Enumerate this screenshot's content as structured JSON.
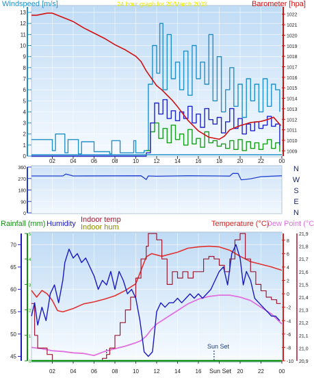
{
  "header": {
    "windspeed_label": "Windspeed [m/s]",
    "title": "24 hour graph for 20/March 2003",
    "barometer_label": "Barometer [hpa]"
  },
  "middle": {
    "compass_letters": [
      "N",
      "W",
      "S",
      "E",
      "N"
    ]
  },
  "bottom": {
    "rainfall_label": "Rainfall (mm)",
    "humidity_label": "Humidity",
    "indoor_temp_label": "Indoor temp",
    "indoor_hum_label": "Indoor hum",
    "temperature_label": "Temperature (°C)",
    "dewpoint_label": "Dew Point (°C)",
    "sunset_label": "Sun Set",
    "sunset_bottom_label": "Sun Set"
  },
  "colors": {
    "panel_top": "#c7dff7",
    "panel_bottom": "#ffffff",
    "wind_avg": "#2090c8",
    "wind_gust": "#1f22c8",
    "wind_green": "#15a015",
    "barometer": "#d01010",
    "direction": "#1f3fcf",
    "rain": "#109010",
    "humidity": "#1818c0",
    "indoor_temp": "#a01830",
    "temperature": "#e03030",
    "dewpoint": "#e070e0"
  },
  "chart_data": [
    {
      "type": "line",
      "title": "24 hour graph for 20/March 2003",
      "x_ticks": [
        "02",
        "04",
        "06",
        "08",
        "10",
        "12",
        "14",
        "16",
        "18",
        "20",
        "22",
        "00"
      ],
      "y_left": {
        "label": "Windspeed [m/s]",
        "ticks": [
          0,
          1,
          2,
          3,
          4,
          5,
          6,
          7,
          8,
          9,
          10,
          11,
          12,
          13
        ],
        "lim": [
          0,
          13.5
        ]
      },
      "y_right": {
        "label": "Barometer [hpa]",
        "ticks": [
          1009,
          1010,
          1011,
          1012,
          1013,
          1014,
          1015,
          1016,
          1017,
          1018,
          1019,
          1020,
          1021,
          1022
        ],
        "lim": [
          1008.5,
          1022.7
        ]
      },
      "series": [
        {
          "name": "Barometer",
          "axis": "right",
          "x": [
            0.0,
            0.5,
            1.0,
            1.5,
            2.0,
            2.5,
            3.0,
            3.5,
            4.0,
            4.5,
            5.0,
            6.0,
            7.0,
            8.0,
            9.0,
            10.0,
            10.5,
            11.0,
            11.5,
            12.0,
            12.5,
            13.0,
            13.5,
            14.0,
            15.0,
            16.0,
            17.0,
            18.0,
            18.5,
            19.0,
            20.0,
            21.0,
            22.0,
            22.7,
            23.2,
            23.9
          ],
          "y": [
            1021.9,
            1021.9,
            1022.0,
            1022.1,
            1022.1,
            1021.9,
            1021.7,
            1021.5,
            1021.3,
            1021.0,
            1020.7,
            1020.2,
            1019.7,
            1019.1,
            1018.6,
            1018.0,
            1017.5,
            1016.6,
            1015.9,
            1015.2,
            1014.8,
            1014.3,
            1013.8,
            1013.2,
            1011.9,
            1010.9,
            1010.3,
            1010.1,
            1010.4,
            1011.0,
            1011.4,
            1011.7,
            1011.8,
            1012.0,
            1012.2,
            1011.4
          ]
        },
        {
          "name": "Wind average",
          "axis": "left",
          "x": [
            0.0,
            1.5,
            2.0,
            2.3,
            3.2,
            3.5,
            4.5,
            4.8,
            6.0,
            7.5,
            7.7,
            8.5,
            9.8,
            10.0,
            10.8,
            11.2,
            11.6,
            12.0,
            12.3,
            12.6,
            13.0,
            13.4,
            13.8,
            14.2,
            14.6,
            15.0,
            15.4,
            15.8,
            16.2,
            16.6,
            17.0,
            17.4,
            17.8,
            18.2,
            18.6,
            19.0,
            19.4,
            19.8,
            20.2,
            20.6,
            21.0,
            21.4,
            21.8,
            22.2,
            22.6,
            23.0,
            23.4,
            23.8
          ],
          "y": [
            1.5,
            1.5,
            0.5,
            2.0,
            0.3,
            1.5,
            0.2,
            1.3,
            0.4,
            0.2,
            1.4,
            0.3,
            1.4,
            0.3,
            0.5,
            6.5,
            10.0,
            7.5,
            12.0,
            6.0,
            11.0,
            7.0,
            8.5,
            6.0,
            9.5,
            5.5,
            10.0,
            7.0,
            8.5,
            6.5,
            11.0,
            5.0,
            9.0,
            4.0,
            6.0,
            8.0,
            4.5,
            6.5,
            3.5,
            7.0,
            5.0,
            6.5,
            4.0,
            7.0,
            4.5,
            6.5,
            6.0,
            4.0
          ]
        },
        {
          "name": "Wind gust",
          "axis": "left",
          "x": [
            0.0,
            10.8,
            11.0,
            11.4,
            11.8,
            12.2,
            12.6,
            13.0,
            13.4,
            13.8,
            14.2,
            14.6,
            15.0,
            15.4,
            15.8,
            16.2,
            16.6,
            17.0,
            17.4,
            17.8,
            18.2,
            18.6,
            19.0,
            19.4,
            19.8,
            20.2,
            20.6,
            21.0,
            21.4,
            21.8,
            22.2,
            22.6,
            23.0,
            23.4,
            23.8
          ],
          "y": [
            0.0,
            0.0,
            0.3,
            3.0,
            4.8,
            3.8,
            5.1,
            3.4,
            4.1,
            3.2,
            4.0,
            3.4,
            4.5,
            3.0,
            3.8,
            2.6,
            4.3,
            3.3,
            2.9,
            3.5,
            2.1,
            3.1,
            4.3,
            2.5,
            3.4,
            2.0,
            2.9,
            2.3,
            3.1,
            2.5,
            2.8,
            3.6,
            2.7,
            2.9,
            1.0
          ]
        },
        {
          "name": "Wind green",
          "axis": "left",
          "x": [
            11.0,
            11.4,
            11.8,
            12.2,
            12.6,
            13.0,
            13.4,
            13.8,
            14.2,
            14.6,
            15.0,
            15.4,
            15.8,
            16.2,
            16.6,
            17.0,
            17.4,
            17.8,
            18.2,
            18.6,
            19.0,
            19.4,
            19.8,
            20.2,
            20.6,
            21.0,
            21.4,
            21.8,
            22.2,
            22.6,
            23.0,
            23.4,
            23.8
          ],
          "y": [
            0.5,
            2.2,
            3.0,
            1.6,
            2.5,
            1.2,
            2.8,
            1.5,
            2.0,
            1.0,
            2.4,
            1.1,
            1.6,
            0.8,
            2.2,
            1.2,
            1.4,
            0.9,
            1.1,
            0.7,
            1.4,
            0.6,
            1.5,
            0.5,
            1.3,
            0.7,
            1.2,
            0.6,
            1.1,
            1.5,
            0.7,
            1.2,
            0.4
          ]
        }
      ]
    },
    {
      "type": "line",
      "title": "",
      "y_left": {
        "ticks": [
          0,
          90,
          180,
          270,
          360
        ],
        "lim": [
          0,
          360
        ]
      },
      "y_right_letters": [
        "N",
        "W",
        "S",
        "E",
        "N"
      ],
      "series": [
        {
          "name": "Wind direction",
          "x": [
            0.0,
            3.0,
            3.3,
            4.0,
            10.5,
            11.0,
            11.2,
            12.0,
            15.0,
            18.0,
            19.0,
            19.3,
            19.8,
            20.1,
            21.0,
            22.0,
            24.0
          ],
          "y": [
            290,
            290,
            305,
            290,
            292,
            262,
            290,
            288,
            292,
            290,
            289,
            310,
            310,
            260,
            268,
            285,
            292
          ]
        }
      ]
    },
    {
      "type": "line",
      "title": "",
      "x_ticks": [
        "02",
        "04",
        "06",
        "08",
        "10",
        "12",
        "14",
        "16",
        "18",
        "20",
        "22",
        "00"
      ],
      "y_left_rain": {
        "label": "Rainfall (mm)",
        "ticks": [
          0,
          1,
          2,
          3,
          4,
          5
        ],
        "lim": [
          0,
          5
        ]
      },
      "y_left_humidity": {
        "label": "Humidity",
        "ticks": [
          45,
          50,
          55,
          60,
          65,
          70
        ],
        "lim": [
          44,
          72.5
        ]
      },
      "y_right_temp": {
        "label": "Temperature (°C)",
        "ticks": [
          -10,
          -8,
          -6,
          -4,
          -2,
          0,
          2,
          4,
          6,
          8
        ],
        "lim": [
          -10,
          9
        ]
      },
      "y_right_indoor": {
        "label": "Indoor temp",
        "ticks": [
          20.9,
          21.0,
          21.1,
          21.2,
          21.3,
          21.4,
          21.5,
          21.6,
          21.7,
          21.8,
          21.9
        ],
        "lim": [
          20.9,
          21.9
        ]
      },
      "annotations": [
        "Sun Set"
      ],
      "series": [
        {
          "name": "Rainfall (mm)",
          "axis": "rain",
          "x": [
            0,
            24
          ],
          "y": [
            0,
            0
          ]
        },
        {
          "name": "Humidity",
          "axis": "humidity",
          "x": [
            0.0,
            0.3,
            0.6,
            1.0,
            1.4,
            1.8,
            2.2,
            2.6,
            3.0,
            3.2,
            3.6,
            4.0,
            4.4,
            4.8,
            5.2,
            5.6,
            6.0,
            6.4,
            6.8,
            7.2,
            7.6,
            8.0,
            8.4,
            8.8,
            9.2,
            9.6,
            10.0,
            10.4,
            10.8,
            11.2,
            11.6,
            12.0,
            12.4,
            12.8,
            13.2,
            13.6,
            14.0,
            14.4,
            14.8,
            15.2,
            15.6,
            16.0,
            16.4,
            16.8,
            17.2,
            17.6,
            18.0,
            18.4,
            18.8,
            19.2,
            19.6,
            20.0,
            20.3,
            20.6,
            21.0,
            21.4,
            21.8,
            22.2,
            22.6,
            23.0,
            23.4,
            23.8
          ],
          "y": [
            54,
            57,
            52,
            56,
            53,
            59,
            61,
            57,
            62,
            66,
            69,
            67,
            68,
            66,
            67,
            65,
            63,
            60,
            62,
            61,
            64,
            60,
            64,
            62,
            59,
            60,
            58,
            53,
            46,
            45,
            46,
            55,
            57,
            56,
            57,
            57,
            58,
            57,
            58,
            59,
            58,
            59,
            58,
            59,
            60,
            62,
            64,
            65,
            61,
            68,
            70,
            67,
            61,
            64,
            62,
            58,
            57,
            56,
            55,
            54,
            54,
            53
          ]
        },
        {
          "name": "Indoor temp",
          "axis": "indoor",
          "x": [
            0.0,
            0.3,
            0.6,
            1.0,
            1.5,
            2.0,
            3.0,
            4.0,
            5.0,
            6.0,
            6.3,
            6.8,
            7.2,
            7.5,
            8.0,
            8.5,
            9.0,
            9.5,
            10.0,
            10.5,
            11.0,
            11.2,
            11.6,
            12.0,
            12.5,
            13.0,
            13.5,
            14.0,
            14.5,
            15.0,
            15.5,
            16.0,
            16.5,
            17.0,
            17.5,
            18.0,
            18.5,
            19.0,
            19.5,
            20.0,
            20.5,
            21.0,
            21.5,
            22.0,
            22.5,
            23.0,
            23.5,
            23.9
          ],
          "y": [
            21.35,
            21.1,
            21.0,
            21.0,
            20.95,
            20.9,
            20.9,
            20.9,
            20.9,
            20.9,
            20.9,
            20.92,
            20.95,
            21.0,
            21.1,
            21.2,
            21.3,
            21.4,
            21.55,
            21.7,
            21.8,
            21.9,
            21.9,
            21.85,
            21.7,
            21.5,
            21.6,
            21.55,
            21.6,
            21.55,
            21.6,
            21.6,
            21.7,
            21.72,
            21.7,
            21.65,
            21.6,
            21.7,
            21.85,
            21.9,
            21.7,
            21.6,
            21.5,
            21.45,
            21.4,
            21.38,
            21.35,
            21.35
          ]
        },
        {
          "name": "Temperature",
          "axis": "temp",
          "x": [
            0.0,
            0.5,
            1.0,
            1.5,
            2.0,
            2.5,
            3.0,
            4.0,
            5.0,
            6.0,
            7.0,
            8.0,
            9.0,
            10.0,
            10.5,
            11.0,
            11.5,
            12.0,
            12.5,
            13.0,
            14.0,
            15.0,
            16.0,
            17.0,
            18.0,
            19.0,
            20.0,
            21.0,
            22.0,
            23.0,
            24.0
          ],
          "y": [
            0.5,
            -0.5,
            0.5,
            0,
            -1,
            -2.5,
            -2.7,
            -2.2,
            -1.5,
            -1.2,
            -0.8,
            -0.3,
            0.5,
            1.5,
            3.5,
            5.5,
            6.0,
            5.8,
            5.6,
            5.8,
            6.2,
            6.8,
            7.0,
            7.1,
            7.0,
            6.5,
            5.6,
            4.8,
            4.4,
            4.0,
            3.5
          ]
        },
        {
          "name": "Dew Point",
          "axis": "temp",
          "x": [
            0.0,
            1.0,
            2.0,
            3.0,
            4.0,
            5.0,
            6.0,
            7.0,
            8.0,
            9.0,
            10.0,
            10.5,
            11.0,
            11.5,
            12.0,
            13.0,
            14.0,
            15.0,
            16.0,
            17.0,
            18.0,
            19.0,
            20.0,
            21.0,
            22.0,
            23.0,
            24.0
          ],
          "y": [
            -8.0,
            -8.2,
            -8.5,
            -8.6,
            -8.8,
            -8.9,
            -9.2,
            -8.6,
            -8.2,
            -7.8,
            -7.3,
            -7.0,
            -6.3,
            -5.3,
            -4.5,
            -3.5,
            -2.5,
            -1.5,
            -0.8,
            -0.4,
            -0.2,
            -0.2,
            -0.5,
            -1.0,
            -2.0,
            -3.0,
            -4.5
          ]
        }
      ]
    }
  ]
}
